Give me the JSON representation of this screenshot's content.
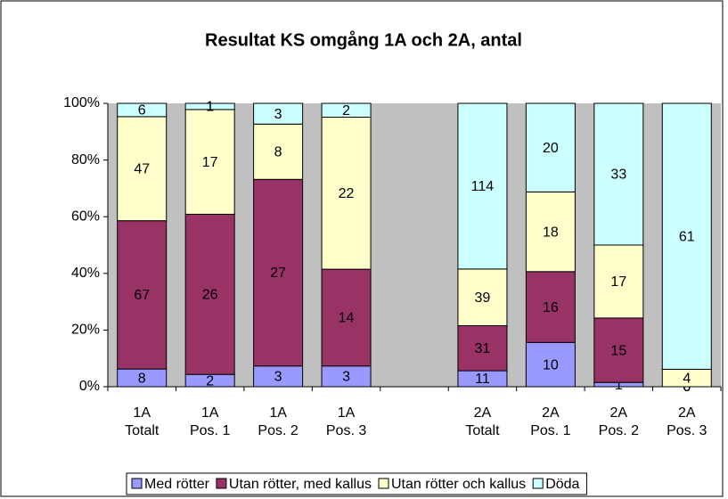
{
  "chart_data": {
    "type": "percent_stacked_bar",
    "title": "Resultat KS omgång 1A och 2A, antal",
    "categories": [
      [
        "1A",
        "Totalt"
      ],
      [
        "1A",
        "Pos. 1"
      ],
      [
        "1A",
        "Pos. 2"
      ],
      [
        "1A",
        "Pos. 3"
      ],
      null,
      [
        "2A",
        "Totalt"
      ],
      [
        "2A",
        "Pos. 1"
      ],
      [
        "2A",
        "Pos. 2"
      ],
      [
        "2A",
        "Pos. 3"
      ]
    ],
    "series": [
      {
        "name": "Med rötter",
        "color": "#9999ff",
        "values": [
          8,
          2,
          3,
          3,
          null,
          11,
          10,
          1,
          0
        ]
      },
      {
        "name": "Utan rötter, med kallus",
        "color": "#993366",
        "values": [
          67,
          26,
          27,
          14,
          null,
          31,
          16,
          15,
          0
        ]
      },
      {
        "name": "Utan rötter och kallus",
        "color": "#ffffcc",
        "values": [
          47,
          17,
          8,
          22,
          null,
          39,
          18,
          17,
          4
        ]
      },
      {
        "name": "Döda",
        "color": "#ccffff",
        "values": [
          6,
          1,
          3,
          2,
          null,
          114,
          20,
          33,
          61
        ]
      }
    ],
    "ylim": [
      0,
      100
    ],
    "yticks": [
      {
        "value": 0,
        "label": "0%"
      },
      {
        "value": 20,
        "label": "20%"
      },
      {
        "value": 40,
        "label": "40%"
      },
      {
        "value": 60,
        "label": "60%"
      },
      {
        "value": 80,
        "label": "80%"
      },
      {
        "value": 100,
        "label": "100%"
      }
    ],
    "plot_background": "#c0c0c0",
    "legend": "bottom"
  }
}
